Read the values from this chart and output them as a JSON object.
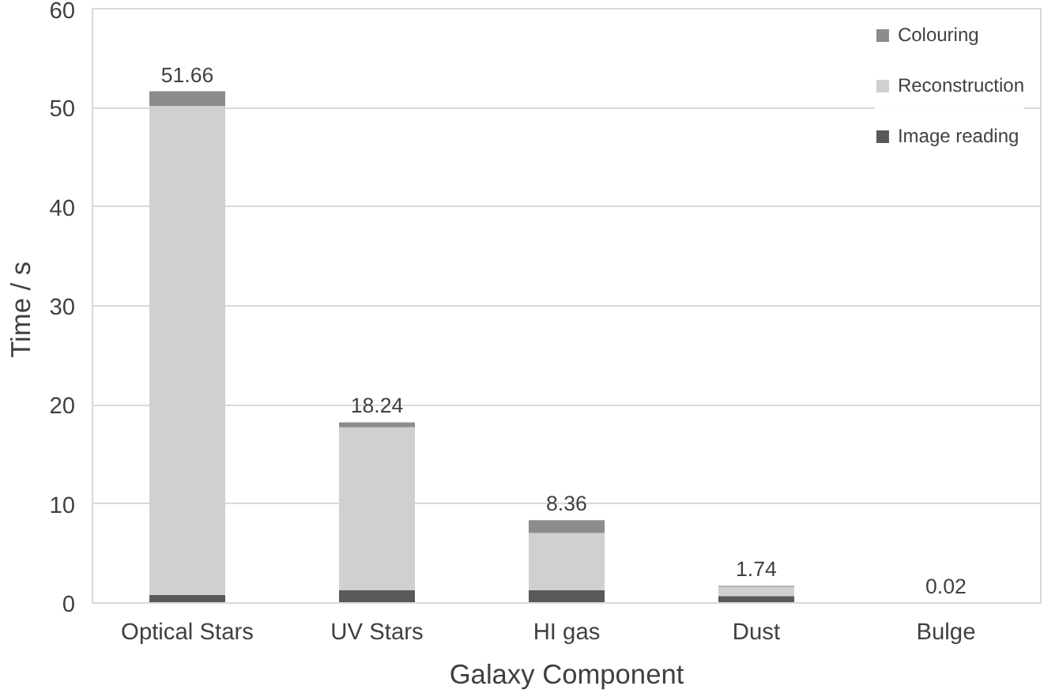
{
  "chart_data": {
    "type": "bar",
    "stacked": true,
    "xlabel": "Galaxy Component",
    "ylabel": "Time  / s",
    "categories": [
      "Optical Stars",
      "UV Stars",
      "HI gas",
      "Dust",
      "Bulge"
    ],
    "series": [
      {
        "name": "Image reading",
        "color": "#595959",
        "values": [
          0.8,
          1.3,
          1.3,
          0.7,
          0
        ]
      },
      {
        "name": "Reconstruction",
        "color": "#d0d0d0",
        "values": [
          49.36,
          16.44,
          5.76,
          0.94,
          0.02
        ]
      },
      {
        "name": "Colouring",
        "color": "#8c8c8c",
        "values": [
          1.5,
          0.5,
          1.3,
          0.1,
          0
        ]
      }
    ],
    "totals": [
      "51.66",
      "18.24",
      "8.36",
      "1.74",
      "0.02"
    ],
    "ylim": [
      0,
      60
    ],
    "yticks": [
      0,
      10,
      20,
      30,
      40,
      50,
      60
    ],
    "grid": "y",
    "legend": "top right"
  }
}
